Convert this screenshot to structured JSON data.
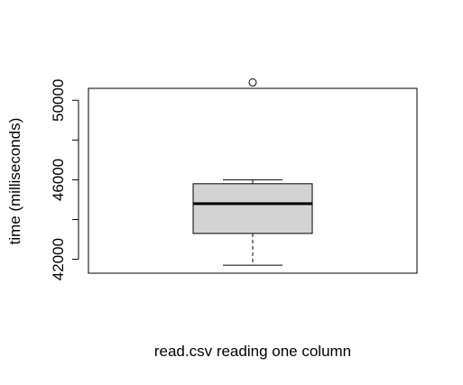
{
  "chart_data": {
    "type": "boxplot",
    "title": "",
    "xlabel": "read.csv reading one column",
    "ylabel": "time (milliseconds)",
    "ylim": [
      41300,
      50600
    ],
    "y_tick_values": [
      42000,
      44000,
      46000,
      48000,
      50000
    ],
    "y_tick_labels": [
      "42000",
      "46000",
      "50000"
    ],
    "y_labeled_tick_values": [
      42000,
      46000,
      50000
    ],
    "series": [
      {
        "whisker_low": 41700,
        "q1": 43300,
        "median": 44800,
        "q3": 45800,
        "whisker_high": 46000,
        "outliers": [
          50900
        ]
      }
    ],
    "grid": false,
    "legend": "none"
  },
  "colors": {
    "box_fill": "#d3d3d3",
    "stroke": "#000000",
    "background": "#ffffff"
  }
}
